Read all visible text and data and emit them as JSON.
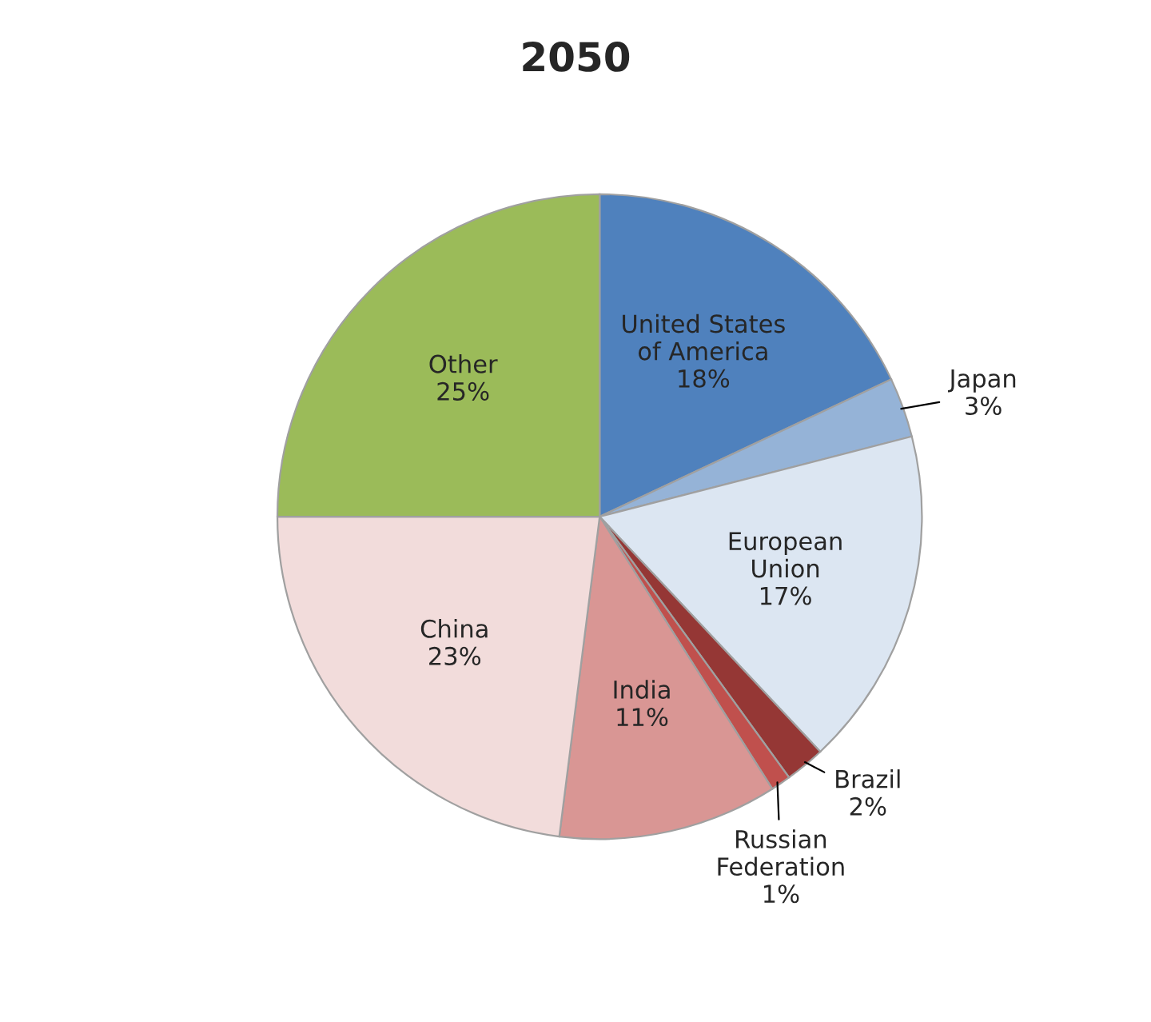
{
  "chart_data": {
    "type": "pie",
    "title": "2050",
    "categories": [
      "United States\nof America",
      "Japan",
      "European\nUnion",
      "Brazil",
      "Russian\nFederation",
      "India",
      "China",
      "Other"
    ],
    "values": [
      18,
      3,
      17,
      2,
      1,
      11,
      23,
      25
    ],
    "value_labels": [
      "18%",
      "3%",
      "17%",
      "2%",
      "1%",
      "11%",
      "23%",
      "25%"
    ],
    "colors": [
      "#4f81bd",
      "#95b3d7",
      "#dce6f2",
      "#953735",
      "#c0504d",
      "#d99694",
      "#f2dcdb",
      "#9bbb59"
    ],
    "legend": false
  }
}
